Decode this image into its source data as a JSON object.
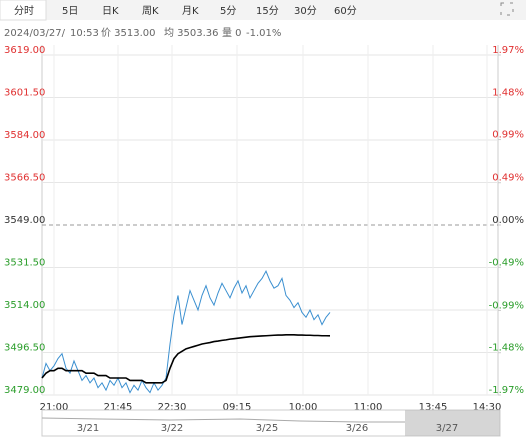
{
  "toolbar": {
    "tabs": [
      "分时",
      "5日",
      "日K",
      "周K",
      "月K",
      "5分",
      "15分",
      "30分",
      "60分"
    ]
  },
  "info": {
    "date": "2024/03/27/",
    "time": "10:53",
    "price": "价 3513.00",
    "avg": "均 3503.36",
    "volume": "量 0",
    "change": "-1.01%"
  },
  "chart_data": {
    "type": "line",
    "time_labels": [
      "21:00",
      "21:45",
      "22:30",
      "09:15",
      "10:00",
      "11:00",
      "13:45",
      "14:30"
    ],
    "ylim": [
      3479,
      3619
    ],
    "yticks": [
      {
        "value": 3479,
        "label": "3479.00"
      },
      {
        "value": 3496.5,
        "label": "3496.50"
      },
      {
        "value": 3514,
        "label": "3514.00"
      },
      {
        "value": 3531.5,
        "label": "3531.50"
      },
      {
        "value": 3549,
        "label": "3549.00"
      },
      {
        "value": 3566.5,
        "label": "3566.50"
      },
      {
        "value": 3584,
        "label": "3584.00"
      },
      {
        "value": 3601.5,
        "label": "3601.50"
      },
      {
        "value": 3619,
        "label": "3619.00"
      }
    ],
    "y2lim": [
      -1.97,
      1.97
    ],
    "y2ticks": [
      {
        "value": -1.97,
        "label": "-1.97%"
      },
      {
        "value": -1.48,
        "label": "-1.48%"
      },
      {
        "value": -0.99,
        "label": "-0.99%"
      },
      {
        "value": -0.49,
        "label": "-0.49%"
      },
      {
        "value": 0,
        "label": "0.00%"
      },
      {
        "value": 0.49,
        "label": "0.49%"
      },
      {
        "value": 0.99,
        "label": "0.99%"
      },
      {
        "value": 1.48,
        "label": "1.48%"
      },
      {
        "value": 1.97,
        "label": "1.97%"
      }
    ],
    "base": 3549,
    "series": [
      {
        "color": "#3a8fd0",
        "values": [
          3486,
          3492,
          3489,
          3491,
          3494,
          3496,
          3490,
          3488,
          3493,
          3489,
          3485,
          3487,
          3484,
          3486,
          3482,
          3484,
          3481,
          3485,
          3483,
          3486,
          3482,
          3484,
          3480,
          3483,
          3481,
          3485,
          3482,
          3480,
          3484,
          3481,
          3483,
          3486,
          3500,
          3512,
          3520,
          3508,
          3515,
          3522,
          3518,
          3514,
          3520,
          3524,
          3519,
          3516,
          3521,
          3525,
          3522,
          3519,
          3523,
          3526,
          3521,
          3524,
          3519,
          3522,
          3525,
          3527,
          3530,
          3526,
          3523,
          3524,
          3527,
          3520,
          3518,
          3515,
          3517,
          3513,
          3511,
          3514,
          3510,
          3512,
          3508,
          3511,
          3513
        ]
      },
      {
        "color": "#000000",
        "values": [
          3486,
          3488,
          3489,
          3489,
          3490,
          3490,
          3489,
          3489,
          3489,
          3489,
          3489,
          3488,
          3488,
          3488,
          3487,
          3487,
          3487,
          3486,
          3486,
          3486,
          3486,
          3486,
          3485,
          3485,
          3485,
          3485,
          3484,
          3484,
          3484,
          3484,
          3484,
          3485,
          3490,
          3494,
          3496,
          3497,
          3498,
          3498.5,
          3499,
          3499.5,
          3500,
          3500.3,
          3500.6,
          3501,
          3501.2,
          3501.5,
          3501.7,
          3502,
          3502.2,
          3502.4,
          3502.6,
          3502.8,
          3503,
          3503.1,
          3503.2,
          3503.3,
          3503.4,
          3503.5,
          3503.6,
          3503.7,
          3503.7,
          3503.8,
          3503.8,
          3503.8,
          3503.7,
          3503.7,
          3503.6,
          3503.6,
          3503.5,
          3503.5,
          3503.4,
          3503.4,
          3503.36
        ]
      }
    ]
  },
  "navigator": {
    "dates": [
      "3/21",
      "3/22",
      "3/25",
      "3/26",
      "3/27"
    ]
  }
}
